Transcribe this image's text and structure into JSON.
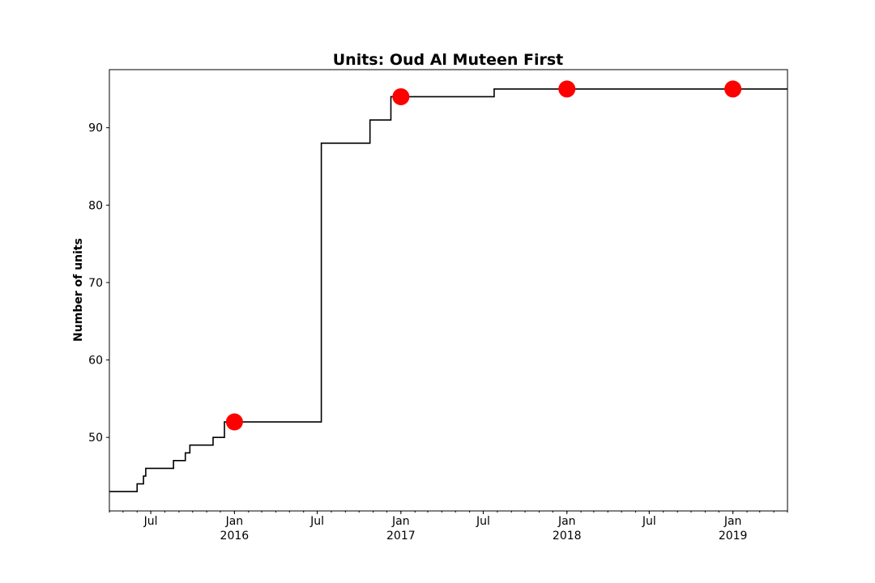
{
  "chart_data": {
    "type": "line",
    "title": "Units: Oud Al Muteen First",
    "xlabel": "",
    "ylabel": "Number of units",
    "xlim": [
      "2015-04-01",
      "2019-05-01"
    ],
    "ylim": [
      40.5,
      97.5
    ],
    "y_ticks": [
      50,
      60,
      70,
      80,
      90
    ],
    "x_ticks": [
      {
        "date": "2015-07-01",
        "label": "Jul",
        "year": ""
      },
      {
        "date": "2016-01-01",
        "label": "Jan",
        "year": "2016"
      },
      {
        "date": "2016-07-01",
        "label": "Jul",
        "year": ""
      },
      {
        "date": "2017-01-01",
        "label": "Jan",
        "year": "2017"
      },
      {
        "date": "2017-07-01",
        "label": "Jul",
        "year": ""
      },
      {
        "date": "2018-01-01",
        "label": "Jan",
        "year": "2018"
      },
      {
        "date": "2018-07-01",
        "label": "Jul",
        "year": ""
      },
      {
        "date": "2019-01-01",
        "label": "Jan",
        "year": "2019"
      }
    ],
    "grid": false,
    "series": [
      {
        "style": "step",
        "color": "#000000",
        "points": [
          {
            "x": "2015-04-01",
            "y": 43
          },
          {
            "x": "2015-06-01",
            "y": 44
          },
          {
            "x": "2015-06-15",
            "y": 45
          },
          {
            "x": "2015-06-20",
            "y": 46
          },
          {
            "x": "2015-08-20",
            "y": 47
          },
          {
            "x": "2015-09-15",
            "y": 48
          },
          {
            "x": "2015-09-25",
            "y": 49
          },
          {
            "x": "2015-11-15",
            "y": 50
          },
          {
            "x": "2015-12-10",
            "y": 52
          },
          {
            "x": "2016-07-10",
            "y": 88
          },
          {
            "x": "2016-10-25",
            "y": 91
          },
          {
            "x": "2016-12-10",
            "y": 94
          },
          {
            "x": "2017-07-25",
            "y": 95
          },
          {
            "x": "2019-05-01",
            "y": 95
          }
        ]
      },
      {
        "style": "markers",
        "color": "#ff0000",
        "points": [
          {
            "x": "2016-01-01",
            "y": 52
          },
          {
            "x": "2017-01-01",
            "y": 94
          },
          {
            "x": "2018-01-01",
            "y": 95
          },
          {
            "x": "2019-01-01",
            "y": 95
          }
        ]
      }
    ]
  }
}
